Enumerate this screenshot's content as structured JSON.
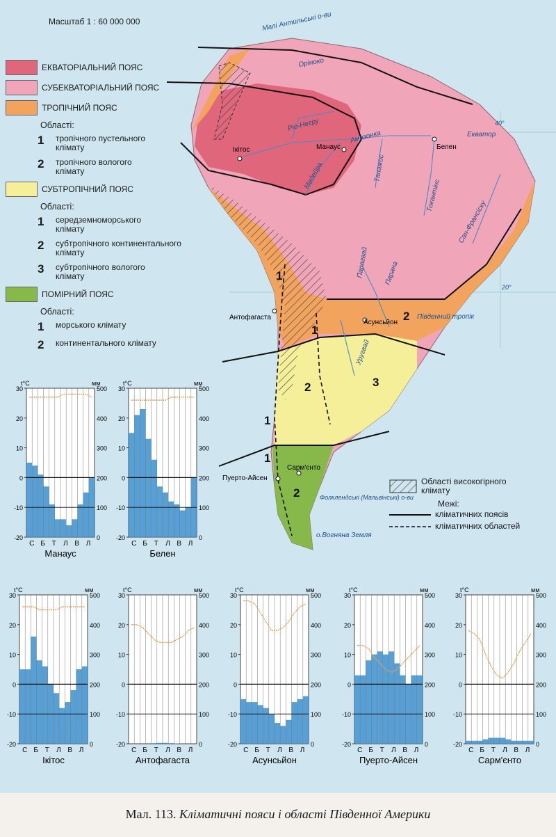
{
  "scale": "Масштаб 1 : 60 000 000",
  "legend": {
    "equatorial": "ЕКВАТОРІАЛЬНИЙ ПОЯС",
    "subequatorial": "СУБЕКВАТОРІАЛЬНИЙ ПОЯС",
    "tropical": "ТРОПІЧНИЙ ПОЯС",
    "tropical_regions_label": "Області:",
    "tropical_regions": [
      {
        "num": "1",
        "text": "тропічного пустельного клімату"
      },
      {
        "num": "2",
        "text": "тропічного вологого клімату"
      }
    ],
    "subtropical": "СУБТРОПІЧНИЙ ПОЯС",
    "subtropical_regions_label": "Області:",
    "subtropical_regions": [
      {
        "num": "1",
        "text": "середземноморського клімату"
      },
      {
        "num": "2",
        "text": "субтропічного континентального клімату"
      },
      {
        "num": "3",
        "text": "субтропічного вологого клімату"
      }
    ],
    "temperate": "ПОМІРНИЙ ПОЯС",
    "temperate_regions_label": "Області:",
    "temperate_regions": [
      {
        "num": "1",
        "text": "морського клімату"
      },
      {
        "num": "2",
        "text": "континентального клімату"
      }
    ],
    "highland": "Області високогірного клімату",
    "borders_label": "Межі:",
    "border_belts": "кліматичних поясів",
    "border_regions": "кліматичних областей"
  },
  "colors": {
    "equatorial": "#e0667c",
    "subequatorial": "#f0a6b8",
    "tropical": "#f2a45e",
    "subtropical": "#f5ef9a",
    "temperate": "#86b84a",
    "sea": "#cfe6f0",
    "bar": "#3a8fcf",
    "temp_line": "#e3a15a"
  },
  "map_labels": {
    "antilles": "Малі Антильські о-ви",
    "orinoco": "Оріноко",
    "equator": "Екватор",
    "amazon": "Амазонка",
    "napo": "Ріо-Негру",
    "madeira": "Мадейра",
    "tapajos": "Тапажос",
    "tocantins": "Токантінс",
    "sao_francisco": "Сан-Франсіску",
    "parana": "Парана",
    "paraguay": "Парагвай",
    "uruguay": "Уругвай",
    "tropic": "Південний тропік",
    "falklands": "Фолклендські (Мальвінські) о-ви",
    "tierra": "о.Вогняна Земля",
    "lon40": "40°",
    "lat20": "20°",
    "cities": {
      "iquitos": "Ікітос",
      "manaus": "Манаус",
      "belem": "Белен",
      "antofagasta": "Антофагаста",
      "asuncion": "Асунсьйон",
      "sarmiento": "Сарм'єнто",
      "aysen": "Пуерто-Айсен"
    },
    "zone_nums": {
      "trop1": "1",
      "trop2": "2",
      "sub1": "1",
      "sub2": "2",
      "sub3": "3",
      "temp1": "1",
      "temp2": "2"
    }
  },
  "chart_data": [
    {
      "type": "bar+line",
      "title": "Манаус",
      "months": [
        "С",
        "Б",
        "Т",
        "Л",
        "В",
        "Л"
      ],
      "precip_mm": [
        250,
        240,
        210,
        170,
        110,
        60,
        60,
        40,
        60,
        110,
        150,
        200
      ],
      "temp_c": [
        27,
        27,
        27,
        27,
        27,
        27,
        28,
        28,
        28,
        28,
        28,
        27
      ]
    },
    {
      "type": "bar+line",
      "title": "Белен",
      "months": [
        "С",
        "Б",
        "Т",
        "Л",
        "В",
        "Л"
      ],
      "precip_mm": [
        350,
        410,
        430,
        330,
        260,
        170,
        150,
        120,
        110,
        90,
        100,
        200
      ],
      "temp_c": [
        26,
        26,
        26,
        26,
        26,
        26,
        26,
        27,
        27,
        27,
        27,
        27
      ]
    },
    {
      "type": "bar+line",
      "title": "Ікітос",
      "months": [
        "С",
        "Б",
        "Т",
        "Л",
        "В",
        "Л"
      ],
      "precip_mm": [
        250,
        250,
        360,
        280,
        260,
        200,
        170,
        120,
        140,
        180,
        250,
        260
      ],
      "temp_c": [
        26,
        26,
        26,
        25,
        25,
        25,
        25,
        26,
        26,
        26,
        26,
        26
      ]
    },
    {
      "type": "bar+line",
      "title": "Антофагаста",
      "months": [
        "С",
        "Б",
        "Т",
        "Л",
        "В",
        "Л"
      ],
      "precip_mm": [
        0,
        0,
        0,
        0,
        2,
        3,
        3,
        2,
        1,
        0,
        0,
        0
      ],
      "temp_c": [
        20,
        20,
        19,
        17,
        15,
        14,
        14,
        14,
        15,
        16,
        18,
        19
      ]
    },
    {
      "type": "bar+line",
      "title": "Асунсьйон",
      "months": [
        "С",
        "Б",
        "Т",
        "Л",
        "В",
        "Л"
      ],
      "precip_mm": [
        150,
        140,
        140,
        130,
        120,
        100,
        70,
        60,
        80,
        140,
        150,
        160
      ],
      "temp_c": [
        28,
        28,
        27,
        24,
        21,
        18,
        18,
        19,
        21,
        24,
        26,
        27
      ]
    },
    {
      "type": "bar+line",
      "title": "Пуерто-Айсен",
      "months": [
        "С",
        "Б",
        "Т",
        "Л",
        "В",
        "Л"
      ],
      "precip_mm": [
        230,
        230,
        280,
        300,
        310,
        300,
        310,
        270,
        230,
        200,
        230,
        230
      ],
      "temp_c": [
        13,
        13,
        12,
        9,
        7,
        5,
        4,
        5,
        7,
        9,
        11,
        13
      ]
    },
    {
      "type": "bar+line",
      "title": "Сарм'єнто",
      "months": [
        "С",
        "Б",
        "Т",
        "Л",
        "В",
        "Л"
      ],
      "precip_mm": [
        10,
        10,
        10,
        15,
        20,
        20,
        20,
        15,
        10,
        10,
        10,
        10
      ],
      "temp_c": [
        18,
        17,
        15,
        10,
        6,
        3,
        2,
        4,
        7,
        11,
        14,
        17
      ]
    }
  ],
  "chart_axes": {
    "t_label": "t°С",
    "mm_label": "мм",
    "t_ticks": [
      "30",
      "20",
      "10",
      "0",
      "-10",
      "-20"
    ],
    "mm_ticks": [
      "500",
      "400",
      "300",
      "200",
      "100",
      "0"
    ]
  },
  "caption": {
    "prefix": "Мал. 113. ",
    "title": "Кліматичні пояси і області Південної Америки"
  }
}
